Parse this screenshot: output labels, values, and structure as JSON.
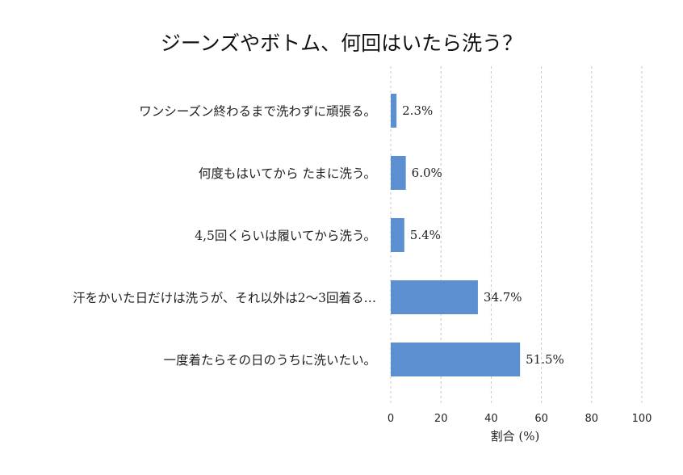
{
  "chart_data": {
    "type": "bar",
    "orientation": "horizontal",
    "title": "ジーンズやボトム、何回はいたら洗う？",
    "xlabel": "割合 (%)",
    "ylabel": "",
    "xlim": [
      0,
      100
    ],
    "x_ticks": [
      "0",
      "20",
      "40",
      "60",
      "80",
      "100"
    ],
    "grid": "vertical dashed",
    "categories": [
      "ワンシーズン終わるまで洗わずに頑張る。",
      "何度もはいてから たまに洗う。",
      "4,5回くらいは履いてから洗う。",
      "汗をかいた日だけは洗うが、それ以外は2〜3回着る…",
      "一度着たらその日のうちに洗いたい。"
    ],
    "values": [
      2.3,
      6.0,
      5.4,
      34.7,
      51.5
    ],
    "value_labels": [
      "2.3%",
      "6.0%",
      "5.4%",
      "34.7%",
      "51.5%"
    ],
    "bar_color": "#5b8fd0"
  }
}
